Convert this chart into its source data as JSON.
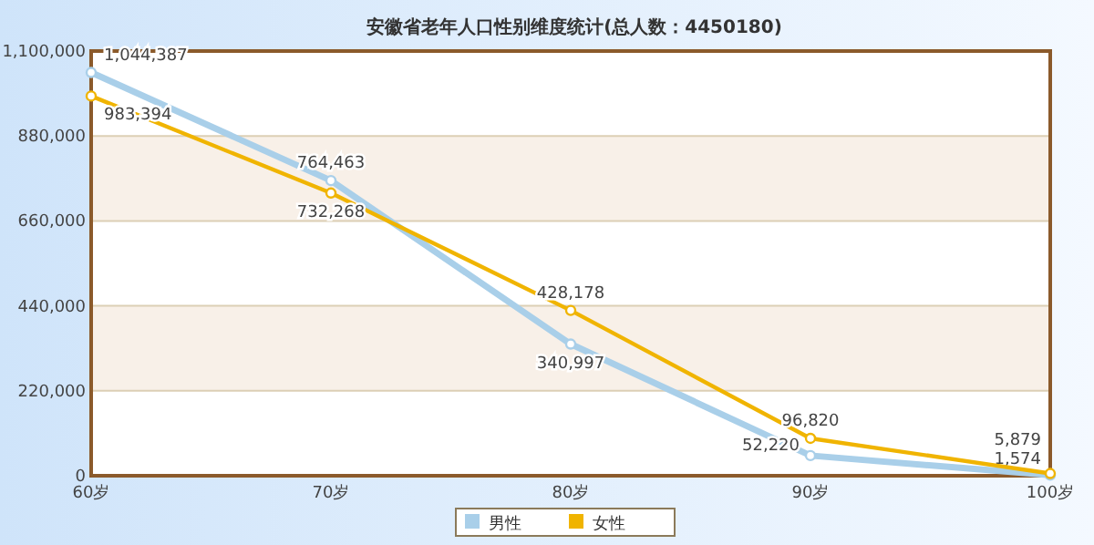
{
  "chart_data": {
    "type": "line",
    "title": "安徽省老年人口性别维度统计(总人数：4450180)",
    "categories": [
      "60岁",
      "70岁",
      "80岁",
      "90岁",
      "100岁"
    ],
    "series": [
      {
        "name": "男性",
        "color": "#a9cfe9",
        "values": [
          1044387,
          764463,
          340997,
          52220,
          1574
        ],
        "value_labels": [
          "1,044,387",
          "764,463",
          "340,997",
          "52,220",
          "1,574"
        ]
      },
      {
        "name": "女性",
        "color": "#f0b400",
        "values": [
          983394,
          732268,
          428178,
          96820,
          5879
        ],
        "value_labels": [
          "983,394",
          "732,268",
          "428,178",
          "96,820",
          "5,879"
        ]
      }
    ],
    "ylim": [
      0,
      1100000
    ],
    "yticks": [
      {
        "value": 0,
        "label": "0"
      },
      {
        "value": 220000,
        "label": "220,000"
      },
      {
        "value": 440000,
        "label": "440,000"
      },
      {
        "value": 660000,
        "label": "660,000"
      },
      {
        "value": 880000,
        "label": "880,000"
      },
      {
        "value": 1100000,
        "label": "1,100,000"
      }
    ],
    "grid": "y",
    "legend": "bottom",
    "marker": "circle"
  }
}
